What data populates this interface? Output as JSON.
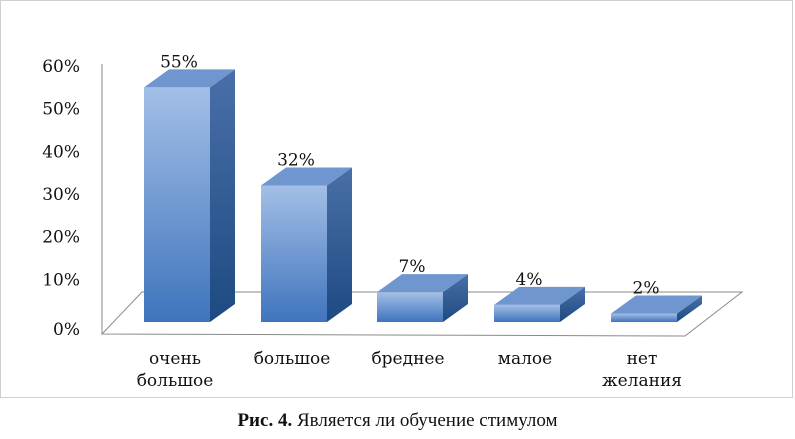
{
  "chart_data": {
    "type": "bar",
    "categories": [
      [
        "очень",
        "большое"
      ],
      [
        "большое"
      ],
      [
        "бреднее"
      ],
      [
        "малое"
      ],
      [
        "нет",
        "желания"
      ]
    ],
    "values": [
      55,
      32,
      7,
      4,
      2
    ],
    "value_labels": [
      "55%",
      "32%",
      "7%",
      "4%",
      "2%"
    ],
    "y_ticks": [
      "0%",
      "10%",
      "20%",
      "30%",
      "40%",
      "50%",
      "60%"
    ],
    "ylim": [
      0,
      60
    ],
    "style": "3d-column",
    "bar_color": "#4f81bd"
  },
  "caption": {
    "prefix": "Рис. 4.",
    "text": " Является ли обучение стимулом"
  }
}
